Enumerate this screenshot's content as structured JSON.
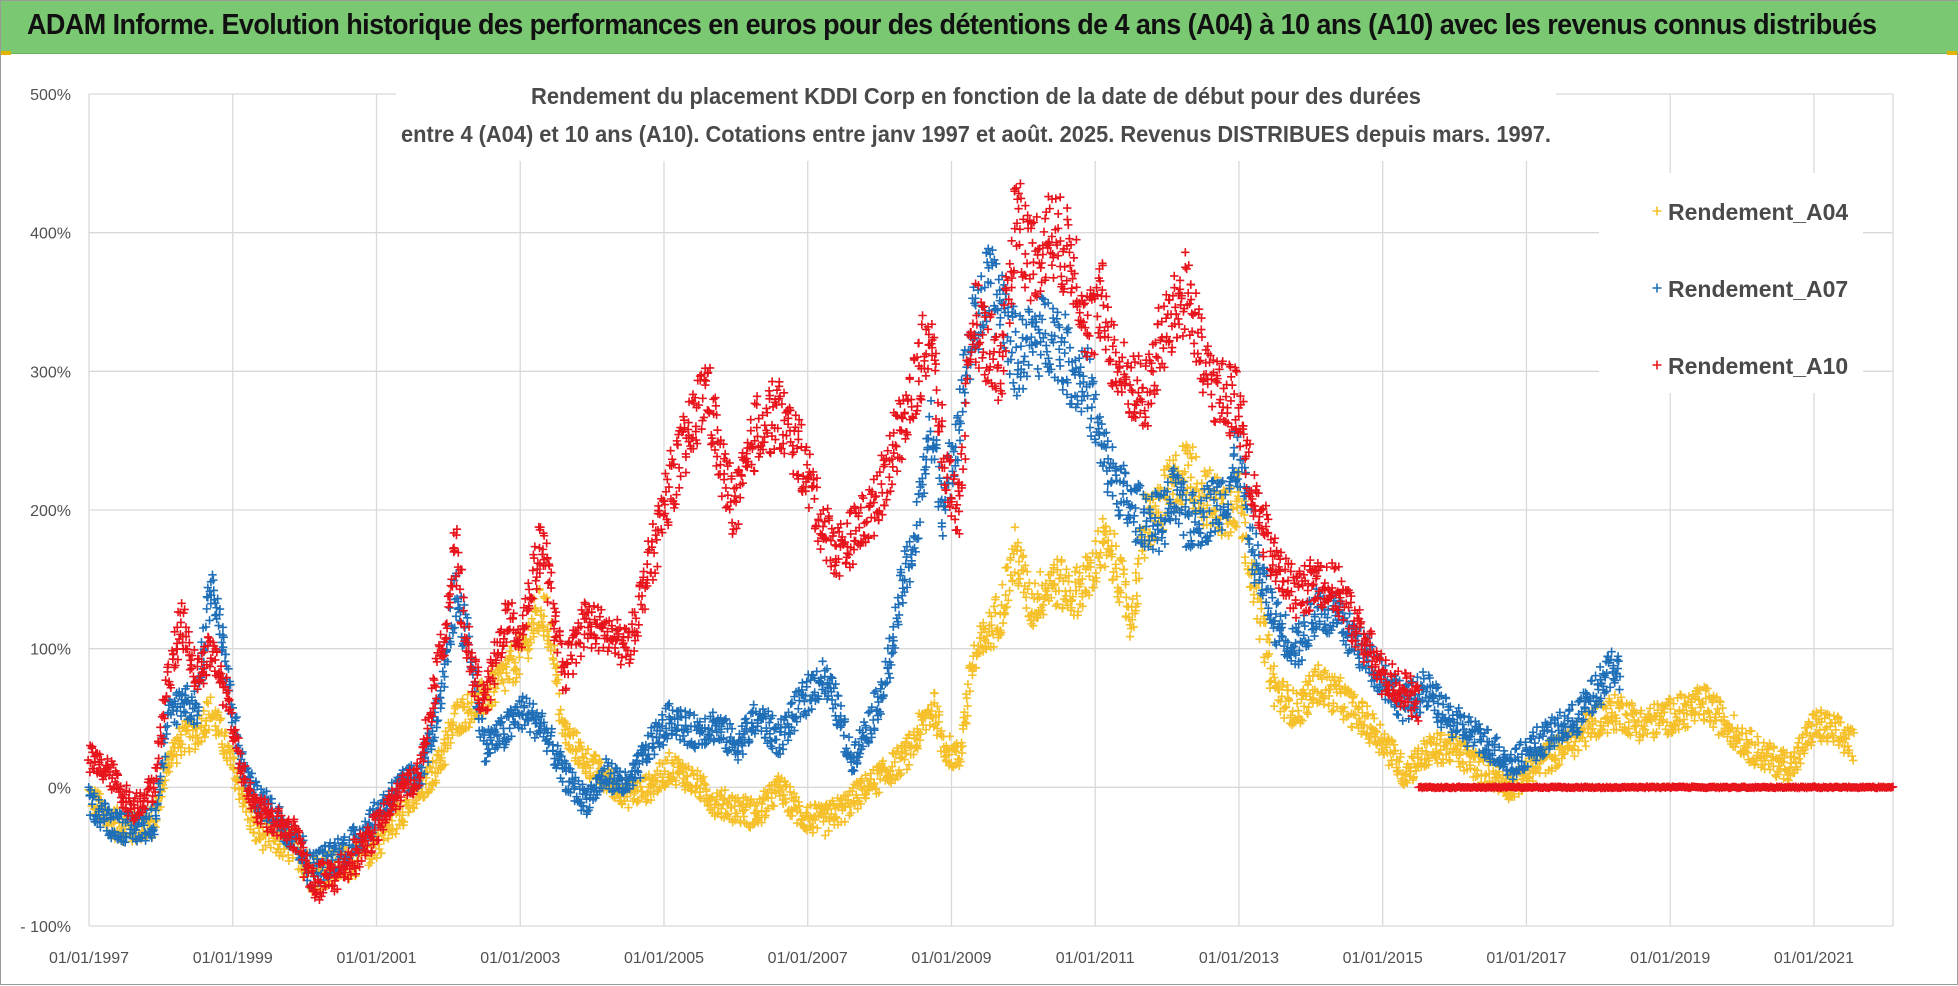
{
  "banner": {
    "title": "ADAM Informe. Evolution historique des performances en euros pour des détentions de 4 ans (A04) à 10 ans (A10) avec les revenus connus distribués"
  },
  "colors": {
    "banner_bg": "#7bc873",
    "grid": "#d9d9d9",
    "A04": "#f5c02a",
    "A07": "#1f6fb8",
    "A10": "#e8141c"
  },
  "chart_data": {
    "type": "scatter",
    "title": [
      "Rendement du placement KDDI Corp en fonction de la date de début pour des durées",
      "entre 4 (A04) et 10 ans (A10). Cotations entre janv 1997 et août. 2025. Revenus DISTRIBUES depuis mars. 1997."
    ],
    "xlabel": "",
    "ylabel": "",
    "x_ticks": [
      "01/01/1997",
      "01/01/1999",
      "01/01/2001",
      "01/01/2003",
      "01/01/2005",
      "01/01/2007",
      "01/01/2009",
      "01/01/2011",
      "01/01/2013",
      "01/01/2015",
      "01/01/2017",
      "01/01/2019",
      "01/01/2021"
    ],
    "y_ticks": [
      "500%",
      "400%",
      "300%",
      "200%",
      "100%",
      "0%",
      "- 100%"
    ],
    "ylim": [
      -100,
      500
    ],
    "xlim": [
      1997.0,
      2022.1
    ],
    "grid": true,
    "legend_position": "top-right",
    "marker": "+",
    "series": [
      {
        "name": "Rendement_A04",
        "color": "#f5c02a",
        "x_end": 2021.55,
        "points": [
          [
            1997.0,
            -5
          ],
          [
            1997.3,
            -25
          ],
          [
            1997.6,
            -30
          ],
          [
            1997.9,
            -25
          ],
          [
            1998.1,
            20
          ],
          [
            1998.3,
            35
          ],
          [
            1998.5,
            40
          ],
          [
            1998.7,
            55
          ],
          [
            1998.9,
            30
          ],
          [
            1999.1,
            0
          ],
          [
            1999.3,
            -30
          ],
          [
            1999.6,
            -38
          ],
          [
            1999.9,
            -45
          ],
          [
            2000.1,
            -62
          ],
          [
            2000.4,
            -58
          ],
          [
            2000.7,
            -52
          ],
          [
            2001.0,
            -40
          ],
          [
            2001.3,
            -20
          ],
          [
            2001.6,
            -5
          ],
          [
            2001.9,
            20
          ],
          [
            2002.1,
            50
          ],
          [
            2002.4,
            60
          ],
          [
            2002.7,
            75
          ],
          [
            2003.0,
            95
          ],
          [
            2003.3,
            130
          ],
          [
            2003.45,
            105
          ],
          [
            2003.6,
            40
          ],
          [
            2003.9,
            20
          ],
          [
            2004.2,
            5
          ],
          [
            2004.5,
            -5
          ],
          [
            2004.8,
            0
          ],
          [
            2005.1,
            15
          ],
          [
            2005.4,
            5
          ],
          [
            2005.7,
            -10
          ],
          [
            2006.0,
            -15
          ],
          [
            2006.3,
            -20
          ],
          [
            2006.6,
            0
          ],
          [
            2006.9,
            -20
          ],
          [
            2007.2,
            -25
          ],
          [
            2007.5,
            -15
          ],
          [
            2007.8,
            0
          ],
          [
            2008.1,
            10
          ],
          [
            2008.4,
            25
          ],
          [
            2008.6,
            45
          ],
          [
            2008.75,
            60
          ],
          [
            2008.9,
            30
          ],
          [
            2009.1,
            20
          ],
          [
            2009.3,
            90
          ],
          [
            2009.5,
            110
          ],
          [
            2009.7,
            130
          ],
          [
            2009.9,
            170
          ],
          [
            2010.1,
            130
          ],
          [
            2010.4,
            150
          ],
          [
            2010.7,
            140
          ],
          [
            2010.9,
            150
          ],
          [
            2011.1,
            175
          ],
          [
            2011.3,
            160
          ],
          [
            2011.5,
            120
          ],
          [
            2011.7,
            190
          ],
          [
            2011.9,
            200
          ],
          [
            2012.1,
            220
          ],
          [
            2012.3,
            230
          ],
          [
            2012.5,
            210
          ],
          [
            2012.8,
            200
          ],
          [
            2013.0,
            210
          ],
          [
            2013.2,
            150
          ],
          [
            2013.5,
            70
          ],
          [
            2013.8,
            55
          ],
          [
            2014.1,
            75
          ],
          [
            2014.4,
            65
          ],
          [
            2014.7,
            50
          ],
          [
            2015.0,
            35
          ],
          [
            2015.3,
            10
          ],
          [
            2015.6,
            25
          ],
          [
            2015.9,
            30
          ],
          [
            2016.2,
            20
          ],
          [
            2016.5,
            10
          ],
          [
            2016.8,
            0
          ],
          [
            2017.1,
            15
          ],
          [
            2017.4,
            25
          ],
          [
            2017.7,
            35
          ],
          [
            2018.0,
            50
          ],
          [
            2018.3,
            55
          ],
          [
            2018.6,
            45
          ],
          [
            2018.9,
            50
          ],
          [
            2019.2,
            55
          ],
          [
            2019.5,
            60
          ],
          [
            2019.8,
            45
          ],
          [
            2020.1,
            30
          ],
          [
            2020.4,
            20
          ],
          [
            2020.7,
            15
          ],
          [
            2021.0,
            45
          ],
          [
            2021.3,
            40
          ],
          [
            2021.55,
            30
          ]
        ]
      },
      {
        "name": "Rendement_A07",
        "color": "#1f6fb8",
        "x_end": 2018.3,
        "points": [
          [
            1997.0,
            -10
          ],
          [
            1997.3,
            -25
          ],
          [
            1997.6,
            -30
          ],
          [
            1997.9,
            -25
          ],
          [
            1998.1,
            50
          ],
          [
            1998.3,
            65
          ],
          [
            1998.5,
            55
          ],
          [
            1998.7,
            150
          ],
          [
            1998.9,
            90
          ],
          [
            1999.1,
            20
          ],
          [
            1999.3,
            -5
          ],
          [
            1999.6,
            -20
          ],
          [
            1999.9,
            -40
          ],
          [
            2000.1,
            -60
          ],
          [
            2000.4,
            -50
          ],
          [
            2000.7,
            -40
          ],
          [
            2001.0,
            -20
          ],
          [
            2001.3,
            0
          ],
          [
            2001.6,
            10
          ],
          [
            2001.9,
            60
          ],
          [
            2002.1,
            140
          ],
          [
            2002.3,
            100
          ],
          [
            2002.5,
            30
          ],
          [
            2002.8,
            40
          ],
          [
            2003.0,
            55
          ],
          [
            2003.3,
            45
          ],
          [
            2003.6,
            10
          ],
          [
            2003.9,
            -10
          ],
          [
            2004.2,
            10
          ],
          [
            2004.5,
            0
          ],
          [
            2004.8,
            30
          ],
          [
            2005.1,
            50
          ],
          [
            2005.4,
            40
          ],
          [
            2005.7,
            45
          ],
          [
            2006.0,
            30
          ],
          [
            2006.3,
            50
          ],
          [
            2006.6,
            35
          ],
          [
            2006.9,
            60
          ],
          [
            2007.2,
            80
          ],
          [
            2007.4,
            60
          ],
          [
            2007.6,
            20
          ],
          [
            2007.9,
            50
          ],
          [
            2008.1,
            80
          ],
          [
            2008.3,
            140
          ],
          [
            2008.5,
            180
          ],
          [
            2008.7,
            260
          ],
          [
            2008.9,
            200
          ],
          [
            2009.1,
            270
          ],
          [
            2009.3,
            330
          ],
          [
            2009.5,
            360
          ],
          [
            2009.7,
            350
          ],
          [
            2009.9,
            310
          ],
          [
            2010.1,
            320
          ],
          [
            2010.4,
            330
          ],
          [
            2010.7,
            300
          ],
          [
            2010.9,
            290
          ],
          [
            2011.1,
            240
          ],
          [
            2011.3,
            220
          ],
          [
            2011.5,
            200
          ],
          [
            2011.7,
            195
          ],
          [
            2011.9,
            190
          ],
          [
            2012.1,
            210
          ],
          [
            2012.3,
            190
          ],
          [
            2012.6,
            200
          ],
          [
            2012.8,
            210
          ],
          [
            2013.0,
            240
          ],
          [
            2013.2,
            170
          ],
          [
            2013.5,
            120
          ],
          [
            2013.8,
            100
          ],
          [
            2014.1,
            130
          ],
          [
            2014.4,
            120
          ],
          [
            2014.7,
            100
          ],
          [
            2015.0,
            80
          ],
          [
            2015.3,
            60
          ],
          [
            2015.6,
            70
          ],
          [
            2015.9,
            50
          ],
          [
            2016.2,
            40
          ],
          [
            2016.5,
            30
          ],
          [
            2016.8,
            15
          ],
          [
            2017.1,
            30
          ],
          [
            2017.4,
            40
          ],
          [
            2017.7,
            50
          ],
          [
            2018.0,
            70
          ],
          [
            2018.2,
            90
          ],
          [
            2018.3,
            80
          ]
        ]
      },
      {
        "name": "Rendement_A10",
        "color": "#e8141c",
        "x_end": 2015.5,
        "flat_zero_range": [
          2015.5,
          2022.1
        ],
        "points": [
          [
            1997.0,
            20
          ],
          [
            1997.3,
            10
          ],
          [
            1997.6,
            -15
          ],
          [
            1997.9,
            0
          ],
          [
            1998.1,
            80
          ],
          [
            1998.3,
            120
          ],
          [
            1998.5,
            80
          ],
          [
            1998.7,
            100
          ],
          [
            1998.9,
            70
          ],
          [
            1999.1,
            20
          ],
          [
            1999.3,
            -15
          ],
          [
            1999.6,
            -25
          ],
          [
            1999.9,
            -35
          ],
          [
            2000.1,
            -70
          ],
          [
            2000.4,
            -65
          ],
          [
            2000.7,
            -50
          ],
          [
            2001.0,
            -30
          ],
          [
            2001.3,
            -5
          ],
          [
            2001.6,
            10
          ],
          [
            2001.9,
            100
          ],
          [
            2002.1,
            170
          ],
          [
            2002.3,
            90
          ],
          [
            2002.5,
            60
          ],
          [
            2002.8,
            120
          ],
          [
            2003.0,
            110
          ],
          [
            2003.3,
            180
          ],
          [
            2003.6,
            80
          ],
          [
            2003.9,
            120
          ],
          [
            2004.2,
            110
          ],
          [
            2004.5,
            100
          ],
          [
            2004.8,
            160
          ],
          [
            2005.1,
            220
          ],
          [
            2005.4,
            260
          ],
          [
            2005.6,
            290
          ],
          [
            2005.8,
            230
          ],
          [
            2006.0,
            200
          ],
          [
            2006.3,
            260
          ],
          [
            2006.6,
            270
          ],
          [
            2006.9,
            240
          ],
          [
            2007.2,
            190
          ],
          [
            2007.4,
            170
          ],
          [
            2007.6,
            180
          ],
          [
            2007.9,
            200
          ],
          [
            2008.1,
            230
          ],
          [
            2008.3,
            260
          ],
          [
            2008.5,
            290
          ],
          [
            2008.7,
            330
          ],
          [
            2008.9,
            230
          ],
          [
            2009.1,
            200
          ],
          [
            2009.3,
            340
          ],
          [
            2009.5,
            320
          ],
          [
            2009.7,
            300
          ],
          [
            2009.9,
            420
          ],
          [
            2010.1,
            380
          ],
          [
            2010.4,
            400
          ],
          [
            2010.7,
            380
          ],
          [
            2010.9,
            330
          ],
          [
            2011.1,
            350
          ],
          [
            2011.3,
            300
          ],
          [
            2011.5,
            290
          ],
          [
            2011.7,
            280
          ],
          [
            2011.9,
            320
          ],
          [
            2012.1,
            340
          ],
          [
            2012.3,
            360
          ],
          [
            2012.5,
            300
          ],
          [
            2012.8,
            280
          ],
          [
            2013.0,
            280
          ],
          [
            2013.2,
            210
          ],
          [
            2013.5,
            160
          ],
          [
            2013.8,
            140
          ],
          [
            2014.1,
            150
          ],
          [
            2014.4,
            140
          ],
          [
            2014.7,
            110
          ],
          [
            2015.0,
            80
          ],
          [
            2015.3,
            70
          ],
          [
            2015.5,
            60
          ]
        ]
      }
    ]
  }
}
